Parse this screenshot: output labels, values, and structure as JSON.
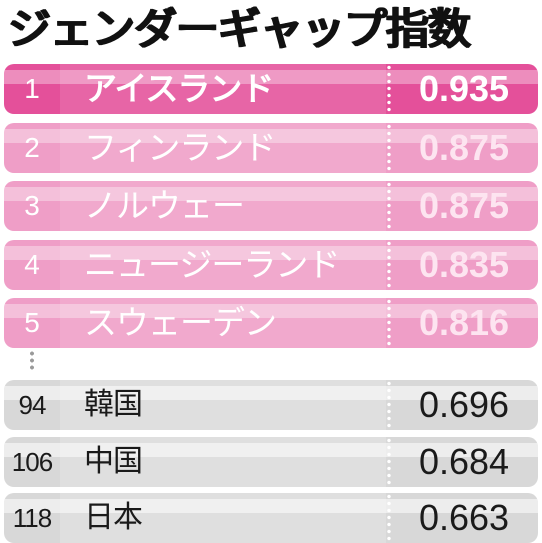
{
  "title": "ジェンダーギャップ指数",
  "chart_data": {
    "type": "table",
    "title": "ジェンダーギャップ指数",
    "rows": [
      {
        "rank": "1",
        "country": "アイスランド",
        "value": "0.935",
        "group": "top",
        "highlight": true
      },
      {
        "rank": "2",
        "country": "フィンランド",
        "value": "0.875",
        "group": "top",
        "highlight": false
      },
      {
        "rank": "3",
        "country": "ノルウェー",
        "value": "0.875",
        "group": "top",
        "highlight": false
      },
      {
        "rank": "4",
        "country": "ニュージーランド",
        "value": "0.835",
        "group": "top",
        "highlight": false
      },
      {
        "rank": "5",
        "country": "スウェーデン",
        "value": "0.816",
        "group": "top",
        "highlight": false
      },
      {
        "rank": "94",
        "country": "韓国",
        "value": "0.696",
        "group": "low",
        "highlight": false
      },
      {
        "rank": "106",
        "country": "中国",
        "value": "0.684",
        "group": "low",
        "highlight": false
      },
      {
        "rank": "118",
        "country": "日本",
        "value": "0.663",
        "group": "low",
        "highlight": false
      }
    ]
  },
  "colors": {
    "highlight_row": "#e4509a",
    "top_row": "#ef9ec7",
    "low_row": "#d8d8d8"
  }
}
